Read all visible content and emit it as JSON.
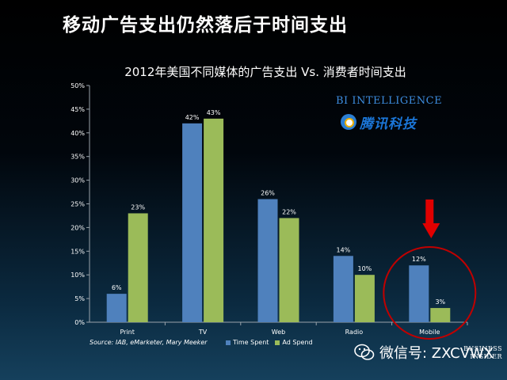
{
  "slide_title": "移动广告支出仍然落后于时间支出",
  "brand_bi": "BI INTELLIGENCE",
  "brand_tencent": "腾讯科技",
  "source": "Source: IAB, eMarketer, Mary Meeker",
  "wechat": "微信号: ZXCVWX",
  "business_insider": [
    "BUSINESS",
    "INSIDER"
  ],
  "colors": {
    "time_spent": "#4f81bd",
    "ad_spend": "#9bbb59",
    "highlight": "#c00000"
  },
  "icons": {
    "arrow": "red-down-arrow-icon",
    "circle": "red-circle-highlight",
    "wechat": "wechat-icon"
  },
  "chart_data": {
    "type": "bar",
    "title": "2012年美国不同媒体的广告支出 Vs. 消费者时间支出",
    "categories": [
      "Print",
      "TV",
      "Web",
      "Radio",
      "Mobile"
    ],
    "series": [
      {
        "name": "Time Spent",
        "values": [
          6,
          42,
          26,
          14,
          12
        ]
      },
      {
        "name": "Ad Spend",
        "values": [
          23,
          43,
          22,
          10,
          3
        ]
      }
    ],
    "value_labels": [
      [
        "6%",
        "42%",
        "26%",
        "14%",
        "12%"
      ],
      [
        "23%",
        "43%",
        "22%",
        "10%",
        "3%"
      ]
    ],
    "y_ticks": [
      "0%",
      "5%",
      "10%",
      "15%",
      "20%",
      "25%",
      "30%",
      "35%",
      "40%",
      "45%",
      "50%"
    ],
    "ylim": [
      0,
      50
    ],
    "legend_position": "bottom",
    "highlight_category": "Mobile"
  }
}
